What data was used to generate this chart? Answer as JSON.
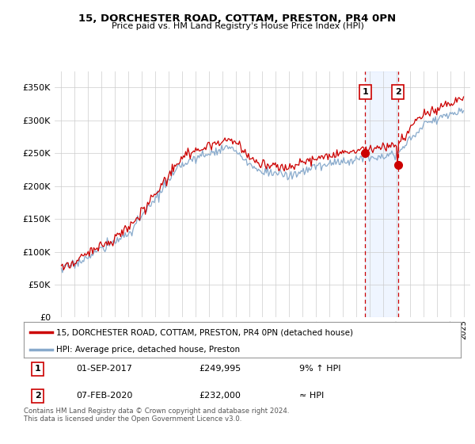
{
  "title": "15, DORCHESTER ROAD, COTTAM, PRESTON, PR4 0PN",
  "subtitle": "Price paid vs. HM Land Registry's House Price Index (HPI)",
  "legend_label_red": "15, DORCHESTER ROAD, COTTAM, PRESTON, PR4 0PN (detached house)",
  "legend_label_blue": "HPI: Average price, detached house, Preston",
  "annotation1_label": "1",
  "annotation1_date": "01-SEP-2017",
  "annotation1_price": "£249,995",
  "annotation1_hpi": "9% ↑ HPI",
  "annotation2_label": "2",
  "annotation2_date": "07-FEB-2020",
  "annotation2_price": "£232,000",
  "annotation2_hpi": "≈ HPI",
  "footer": "Contains HM Land Registry data © Crown copyright and database right 2024.\nThis data is licensed under the Open Government Licence v3.0.",
  "color_red": "#cc0000",
  "color_blue": "#88aacc",
  "color_grid": "#cccccc",
  "color_bg": "#ffffff",
  "color_highlight": "#ddeeff",
  "ylim_min": 0,
  "ylim_max": 375000,
  "sale1_year": 2017.67,
  "sale1_value": 249995,
  "sale2_year": 2020.1,
  "sale2_value": 232000
}
